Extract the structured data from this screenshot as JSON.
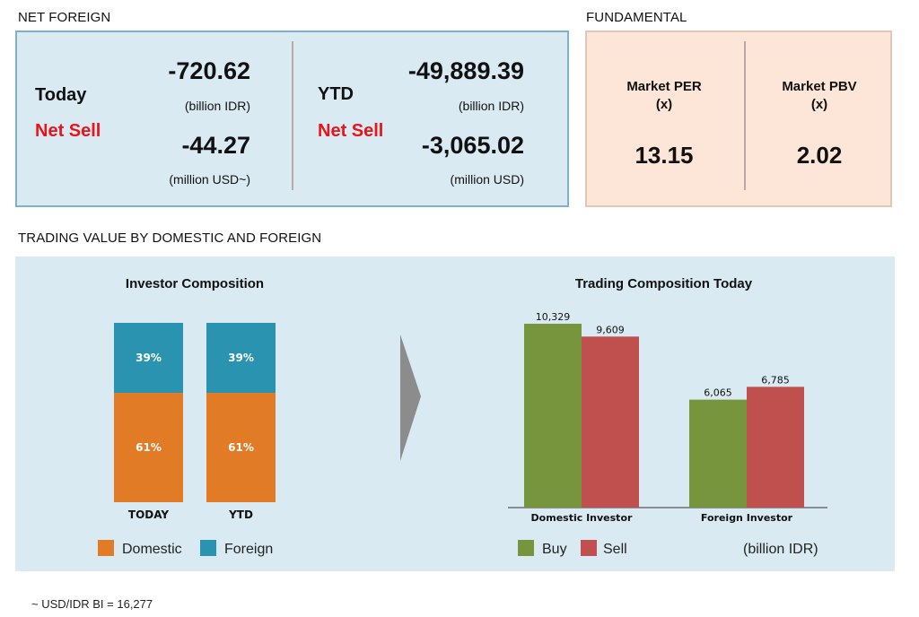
{
  "net_foreign": {
    "title": "NET FOREIGN",
    "today": {
      "label": "Today",
      "status": "Net Sell",
      "value_idr": "-720.62",
      "unit_idr": "(billion IDR)",
      "value_usd": "-44.27",
      "unit_usd": "(million USD~)"
    },
    "ytd": {
      "label": "YTD",
      "status": "Net Sell",
      "value_idr": "-49,889.39",
      "unit_idr": "(billion IDR)",
      "value_usd": "-3,065.02",
      "unit_usd": "(million USD)"
    }
  },
  "fundamental": {
    "title": "FUNDAMENTAL",
    "per": {
      "label": "Market PER",
      "unit": "(x)",
      "value": "13.15"
    },
    "pbv": {
      "label": "Market PBV",
      "unit": "(x)",
      "value": "2.02"
    }
  },
  "trading_value": {
    "title": "TRADING VALUE BY DOMESTIC AND FOREIGN"
  },
  "footnote": "~ USD/IDR BI = 16,277",
  "colors": {
    "domestic": "#e27b26",
    "foreign": "#2a93b0",
    "buy": "#77953d",
    "sell": "#c0504d",
    "arrow": "#8c8c8c"
  },
  "chart_data": [
    {
      "type": "bar",
      "stacked": true,
      "title": "Investor Composition",
      "categories": [
        "TODAY",
        "YTD"
      ],
      "series": [
        {
          "name": "Domestic",
          "values": [
            61,
            61
          ],
          "labels": [
            "61%",
            "61%"
          ]
        },
        {
          "name": "Foreign",
          "values": [
            39,
            39
          ],
          "labels": [
            "39%",
            "39%"
          ]
        }
      ],
      "ylim": [
        0,
        100
      ],
      "legend": "bottom"
    },
    {
      "type": "bar",
      "title": "Trading Composition Today",
      "categories": [
        "Domestic Investor",
        "Foreign Investor"
      ],
      "series": [
        {
          "name": "Buy",
          "values": [
            10329,
            6065
          ],
          "labels": [
            "10,329",
            "6,065"
          ]
        },
        {
          "name": "Sell",
          "values": [
            9609,
            6785
          ],
          "labels": [
            "9,609",
            "6,785"
          ]
        }
      ],
      "unit_note": "(billion IDR)",
      "ylim": [
        0,
        10329
      ],
      "legend": "bottom"
    }
  ]
}
